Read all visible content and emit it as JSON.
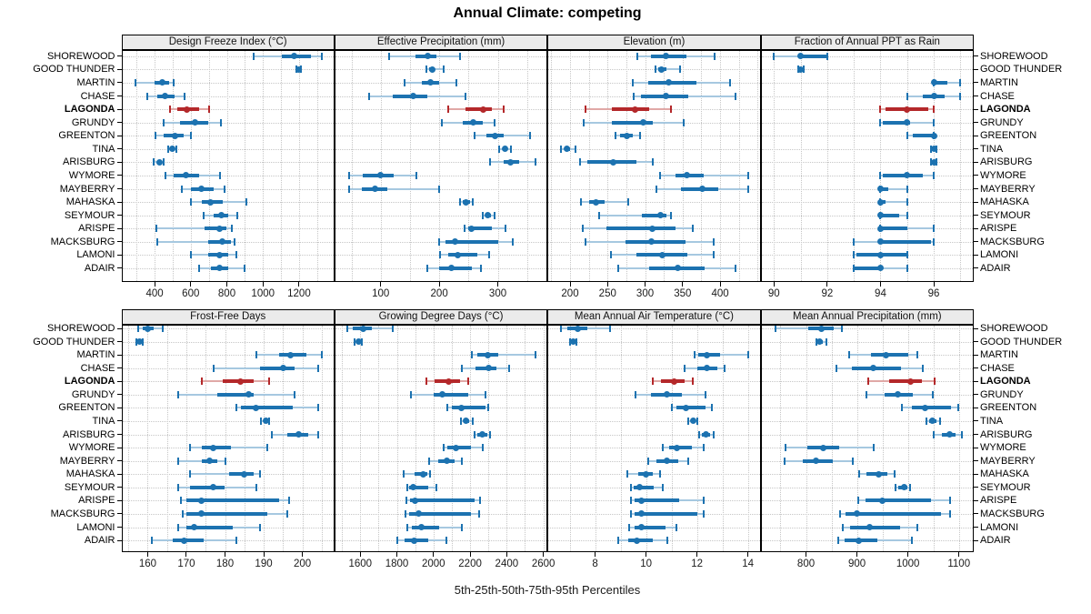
{
  "title": "Annual Climate: competing",
  "xlabel": "5th-25th-50th-75th-95th Percentiles",
  "colors": {
    "blue": "#1c72b0",
    "blue_light": "#a6c8e0",
    "red": "#b4282a",
    "red_light": "#e0a8a6",
    "grid": "#c6c6c6",
    "strip_bg": "#ebebeb",
    "border": "#000000",
    "tick_label": "#1a1a1a"
  },
  "stations": [
    "SHOREWOOD",
    "GOOD THUNDER",
    "MARTIN",
    "CHASE",
    "LAGONDA",
    "GRUNDY",
    "GREENTON",
    "TINA",
    "ARISBURG",
    "WYMORE",
    "MAYBERRY",
    "MAHASKA",
    "SEYMOUR",
    "ARISPE",
    "MACKSBURG",
    "LAMONI",
    "ADAIR"
  ],
  "highlight_station": "LAGONDA",
  "chart_data": {
    "type": "dot-whisker percentile trellis",
    "percentiles": [
      5,
      25,
      50,
      75,
      95
    ],
    "legend_position": "none",
    "grid": "dotted minor",
    "panels": [
      {
        "title": "Design Freeze Index (°C)",
        "row": 0,
        "col": 0,
        "ticks": [
          400,
          600,
          800,
          1000,
          1200
        ],
        "minor": 100,
        "xlim": [
          216,
          1396
        ],
        "values": [
          [
            950,
            1105,
            1175,
            1265,
            1325
          ],
          [
            1185,
            1192,
            1197,
            1202,
            1210
          ],
          [
            295,
            400,
            445,
            480,
            505
          ],
          [
            360,
            415,
            460,
            510,
            565
          ],
          [
            485,
            525,
            580,
            645,
            700
          ],
          [
            450,
            540,
            625,
            695,
            765
          ],
          [
            405,
            450,
            515,
            560,
            600
          ],
          [
            475,
            490,
            497,
            505,
            520
          ],
          [
            395,
            415,
            425,
            435,
            450
          ],
          [
            460,
            505,
            575,
            645,
            760
          ],
          [
            550,
            600,
            660,
            725,
            785
          ],
          [
            600,
            660,
            710,
            775,
            910
          ],
          [
            670,
            725,
            770,
            810,
            860
          ],
          [
            410,
            675,
            760,
            800,
            830
          ],
          [
            415,
            695,
            775,
            825,
            845
          ],
          [
            600,
            695,
            760,
            810,
            855
          ],
          [
            645,
            710,
            760,
            810,
            900
          ]
        ]
      },
      {
        "title": "Effective Precipitation (mm)",
        "row": 0,
        "col": 1,
        "ticks": [
          100,
          200,
          300
        ],
        "minor": 50,
        "xlim": [
          21,
          385
        ],
        "values": [
          [
            115,
            160,
            180,
            195,
            235
          ],
          [
            178,
            183,
            188,
            192,
            207
          ],
          [
            140,
            170,
            185,
            200,
            230
          ],
          [
            80,
            120,
            155,
            180,
            245
          ],
          [
            215,
            245,
            275,
            290,
            310
          ],
          [
            205,
            240,
            258,
            275,
            295
          ],
          [
            260,
            280,
            295,
            310,
            355
          ],
          [
            303,
            308,
            312,
            317,
            322
          ],
          [
            287,
            310,
            322,
            337,
            364
          ],
          [
            46,
            70,
            100,
            122,
            161
          ],
          [
            46,
            68,
            91,
            112,
            200
          ],
          [
            236,
            240,
            245,
            252,
            257
          ],
          [
            275,
            279,
            283,
            289,
            295
          ],
          [
            243,
            250,
            255,
            290,
            313
          ],
          [
            200,
            210,
            227,
            300,
            326
          ],
          [
            201,
            215,
            232,
            265,
            285
          ],
          [
            180,
            200,
            220,
            255,
            272
          ]
        ]
      },
      {
        "title": "Elevation (m)",
        "row": 0,
        "col": 2,
        "ticks": [
          200,
          250,
          300,
          350,
          400
        ],
        "minor": 25,
        "xlim": [
          170,
          454
        ],
        "values": [
          [
            290,
            308,
            328,
            355,
            393
          ],
          [
            314,
            317,
            322,
            328,
            346
          ],
          [
            284,
            304,
            331,
            368,
            413
          ],
          [
            285,
            294,
            328,
            357,
            420
          ],
          [
            220,
            256,
            287,
            306,
            335
          ],
          [
            218,
            256,
            297,
            310,
            352
          ],
          [
            260,
            267,
            276,
            284,
            293
          ],
          [
            188,
            193,
            196,
            200,
            207
          ],
          [
            213,
            223,
            258,
            288,
            310
          ],
          [
            320,
            340,
            356,
            378,
            437
          ],
          [
            315,
            348,
            376,
            397,
            437
          ],
          [
            215,
            225,
            235,
            246,
            277
          ],
          [
            239,
            296,
            320,
            329,
            334
          ],
          [
            217,
            248,
            310,
            340,
            364
          ],
          [
            220,
            274,
            309,
            354,
            391
          ],
          [
            255,
            288,
            323,
            356,
            392
          ],
          [
            264,
            306,
            343,
            379,
            420
          ]
        ]
      },
      {
        "title": "Fraction of Annual PPT as Rain",
        "row": 0,
        "col": 3,
        "ticks": [
          90,
          92,
          94,
          96
        ],
        "minor": 1,
        "xlim": [
          89.5,
          97.5
        ],
        "values": [
          [
            90,
            91,
            91,
            92,
            92
          ],
          [
            90.9,
            91,
            91,
            91,
            91.1
          ],
          [
            96,
            96,
            96,
            96.5,
            97
          ],
          [
            95,
            95.6,
            96,
            96.4,
            97
          ],
          [
            94,
            94.2,
            95,
            95.8,
            96
          ],
          [
            94,
            94.1,
            95,
            95.1,
            96
          ],
          [
            95,
            95.2,
            96,
            96,
            96
          ],
          [
            95.9,
            96,
            96,
            96,
            96.1
          ],
          [
            95.9,
            96,
            96,
            96,
            96.1
          ],
          [
            94,
            94.1,
            95,
            95.6,
            96
          ],
          [
            94,
            94,
            94,
            94.3,
            95
          ],
          [
            94,
            94,
            94,
            94.2,
            95
          ],
          [
            94,
            94,
            94,
            94.7,
            95
          ],
          [
            94,
            94,
            94,
            95,
            96
          ],
          [
            93,
            94,
            94,
            95.9,
            96
          ],
          [
            93,
            93.1,
            94,
            95,
            95
          ],
          [
            93,
            93,
            94,
            94.1,
            95
          ]
        ]
      },
      {
        "title": "Frost-Free Days",
        "row": 1,
        "col": 0,
        "ticks": [
          160,
          170,
          180,
          190,
          200
        ],
        "minor": 5,
        "xlim": [
          153.2,
          208.3
        ],
        "values": [
          [
            157.5,
            158.7,
            160,
            161.5,
            164
          ],
          [
            157.1,
            157.7,
            157.9,
            158.2,
            158.7
          ],
          [
            188,
            194,
            197,
            201,
            205
          ],
          [
            177,
            189,
            195,
            198,
            204
          ],
          [
            174,
            179.5,
            184,
            187.5,
            191.5
          ],
          [
            168,
            178,
            186,
            187.5,
            198
          ],
          [
            183,
            184,
            188,
            197.5,
            204
          ],
          [
            189.4,
            190,
            190.5,
            191,
            191.3
          ],
          [
            192,
            196,
            199,
            201.5,
            204
          ],
          [
            171,
            174,
            177,
            181.5,
            191
          ],
          [
            168,
            174,
            176,
            178,
            180
          ],
          [
            171,
            181,
            185,
            187.5,
            189
          ],
          [
            168,
            171,
            177,
            180,
            188
          ],
          [
            168.5,
            170,
            174,
            194,
            196.5
          ],
          [
            169,
            170,
            174,
            191,
            196
          ],
          [
            168,
            170,
            172,
            182,
            189
          ],
          [
            161,
            166.5,
            169.5,
            174.5,
            183
          ]
        ]
      },
      {
        "title": "Growing Degree Days (°C)",
        "row": 1,
        "col": 1,
        "ticks": [
          1600,
          1800,
          2000,
          2200,
          2400,
          2600
        ],
        "minor": 100,
        "xlim": [
          1459,
          2623
        ],
        "values": [
          [
            1530,
            1560,
            1615,
            1665,
            1775
          ],
          [
            1570,
            1585,
            1592,
            1600,
            1608
          ],
          [
            2210,
            2240,
            2295,
            2355,
            2555
          ],
          [
            2155,
            2230,
            2300,
            2345,
            2415
          ],
          [
            1960,
            2005,
            2085,
            2145,
            2190
          ],
          [
            1875,
            2000,
            2050,
            2190,
            2285
          ],
          [
            2075,
            2100,
            2150,
            2285,
            2300
          ],
          [
            2152,
            2165,
            2175,
            2195,
            2213
          ],
          [
            2225,
            2240,
            2268,
            2295,
            2308
          ],
          [
            2055,
            2075,
            2125,
            2205,
            2270
          ],
          [
            1975,
            2025,
            2075,
            2115,
            2155
          ],
          [
            1837,
            1895,
            1943,
            1965,
            1980
          ],
          [
            1857,
            1865,
            1887,
            1973,
            2015
          ],
          [
            1854,
            1874,
            1898,
            2222,
            2252
          ],
          [
            1845,
            1865,
            1920,
            2205,
            2250
          ],
          [
            1857,
            1880,
            1935,
            2030,
            2155
          ],
          [
            1800,
            1840,
            1893,
            1973,
            2070
          ]
        ]
      },
      {
        "title": "Mean Annual Air Temperature (°C)",
        "row": 1,
        "col": 2,
        "ticks": [
          8,
          10,
          12,
          14
        ],
        "minor": 1,
        "xlim": [
          6.13,
          14.5
        ],
        "values": [
          [
            6.65,
            6.9,
            7.3,
            7.7,
            8.6
          ],
          [
            7.0,
            7.1,
            7.15,
            7.2,
            7.25
          ],
          [
            11.9,
            12.05,
            12.4,
            12.9,
            14.0
          ],
          [
            11.5,
            12.0,
            12.4,
            12.8,
            13.1
          ],
          [
            10.25,
            10.6,
            11.1,
            11.5,
            11.85
          ],
          [
            9.6,
            10.2,
            10.8,
            11.4,
            12.35
          ],
          [
            11.0,
            11.2,
            11.55,
            12.35,
            12.6
          ],
          [
            11.65,
            11.75,
            11.85,
            11.92,
            12.0
          ],
          [
            12.1,
            12.2,
            12.35,
            12.5,
            12.65
          ],
          [
            10.65,
            10.9,
            11.2,
            11.8,
            12.25
          ],
          [
            10.1,
            10.4,
            10.8,
            11.25,
            11.65
          ],
          [
            9.25,
            9.7,
            10.0,
            10.25,
            10.55
          ],
          [
            9.4,
            9.5,
            9.75,
            10.3,
            10.65
          ],
          [
            9.4,
            9.55,
            9.8,
            11.3,
            12.25
          ],
          [
            9.4,
            9.55,
            9.8,
            12.0,
            12.25
          ],
          [
            9.35,
            9.55,
            9.8,
            10.75,
            11.2
          ],
          [
            8.9,
            9.3,
            9.65,
            10.25,
            10.85
          ]
        ]
      },
      {
        "title": "Mean Annual Precipitation (mm)",
        "row": 1,
        "col": 3,
        "ticks": [
          800,
          900,
          1000,
          1100
        ],
        "minor": 50,
        "xlim": [
          711,
          1129
        ],
        "values": [
          [
            740,
            805,
            830,
            855,
            870
          ],
          [
            820,
            822,
            827,
            833,
            840
          ],
          [
            885,
            928,
            956,
            1000,
            1018
          ],
          [
            860,
            890,
            932,
            987,
            1030
          ],
          [
            923,
            963,
            1005,
            1027,
            1053
          ],
          [
            918,
            954,
            980,
            1010,
            1048
          ],
          [
            988,
            1008,
            1033,
            1085,
            1098
          ],
          [
            1037,
            1042,
            1048,
            1056,
            1063
          ],
          [
            1050,
            1067,
            1082,
            1094,
            1105
          ],
          [
            760,
            803,
            834,
            865,
            932
          ],
          [
            758,
            794,
            820,
            852,
            891
          ],
          [
            905,
            919,
            943,
            960,
            974
          ],
          [
            976,
            981,
            993,
            999,
            1004
          ],
          [
            903,
            917,
            950,
            1045,
            1083
          ],
          [
            867,
            878,
            900,
            1065,
            1083
          ],
          [
            873,
            886,
            925,
            985,
            1018
          ],
          [
            864,
            875,
            903,
            940,
            1008
          ]
        ]
      }
    ]
  }
}
